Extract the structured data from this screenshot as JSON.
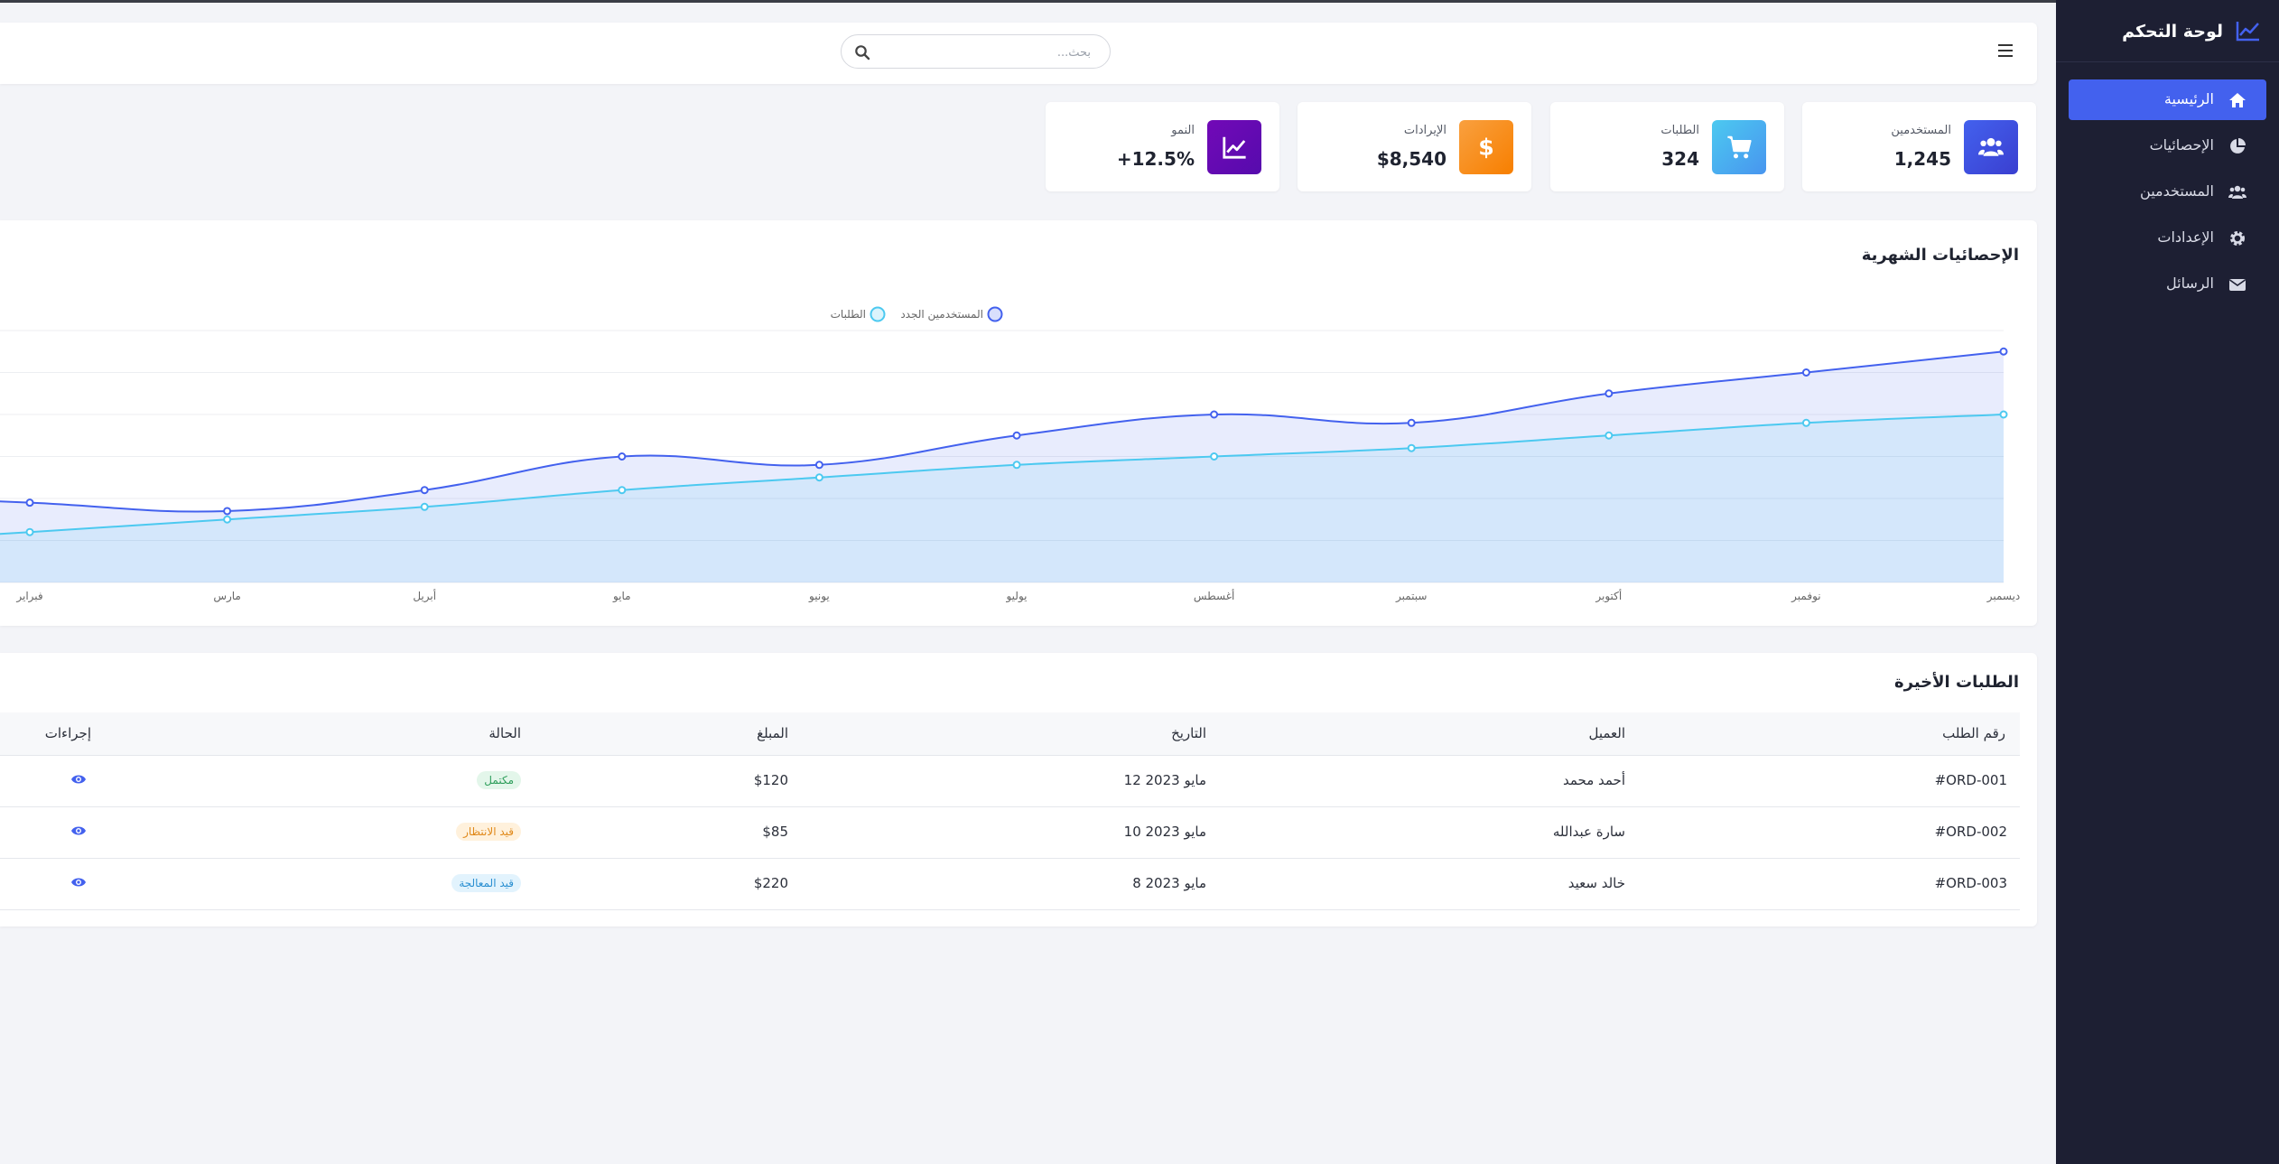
{
  "sidebar": {
    "title": "لوحة التحكم",
    "items": [
      {
        "label": "الرئيسية"
      },
      {
        "label": "الإحصائيات"
      },
      {
        "label": "المستخدمين"
      },
      {
        "label": "الإعدادات"
      },
      {
        "label": "الرسائل"
      }
    ]
  },
  "header": {
    "search_placeholder": "بحث..."
  },
  "stats": [
    {
      "label": "المستخدمين",
      "value": "1,245",
      "color": "#4361ee"
    },
    {
      "label": "الطلبات",
      "value": "324",
      "color": "#4cc9f0"
    },
    {
      "label": "الإيرادات",
      "value": "$8,540",
      "color": "#f98e1e"
    },
    {
      "label": "النمو",
      "value": "+12.5%",
      "color": "#7209b7"
    }
  ],
  "chart_section": {
    "title": "الإحصائيات الشهرية"
  },
  "chart_data": {
    "type": "line",
    "categories": [
      "فبراير",
      "مارس",
      "أبريل",
      "مايو",
      "يونيو",
      "يوليو",
      "أغسطس",
      "سبتمبر",
      "أكتوبر",
      "نوفمبر",
      "ديسمبر"
    ],
    "series": [
      {
        "name": "المستخدمين الجدد",
        "color": "#4361ee",
        "values": [
          190,
          170,
          220,
          300,
          280,
          350,
          400,
          380,
          450,
          500,
          550
        ]
      },
      {
        "name": "الطلبات",
        "color": "#4cc9f0",
        "values": [
          120,
          150,
          180,
          220,
          250,
          280,
          300,
          320,
          350,
          380,
          400
        ]
      }
    ],
    "ylim": [
      0,
      600
    ],
    "grid": true,
    "legend": "top"
  },
  "orders": {
    "title": "الطلبات الأخيرة",
    "columns": [
      "رقم الطلب",
      "العميل",
      "التاريخ",
      "المبلغ",
      "الحالة",
      "إجراءات"
    ],
    "rows": [
      {
        "id": "#ORD-001",
        "customer": "أحمد محمد",
        "date": "12 مايو 2023",
        "amount": "$120",
        "status": "مكتمل",
        "status_bg": "#e3f6ea",
        "status_fg": "#2e9e5b"
      },
      {
        "id": "#ORD-002",
        "customer": "سارة عبدالله",
        "date": "10 مايو 2023",
        "amount": "$85",
        "status": "قيد الانتظار",
        "status_bg": "#fff1dc",
        "status_fg": "#e0891a"
      },
      {
        "id": "#ORD-003",
        "customer": "خالد سعيد",
        "date": "8 مايو 2023",
        "amount": "$220",
        "status": "قيد المعالجة",
        "status_bg": "#e2f3fd",
        "status_fg": "#2a8fd1"
      }
    ]
  }
}
